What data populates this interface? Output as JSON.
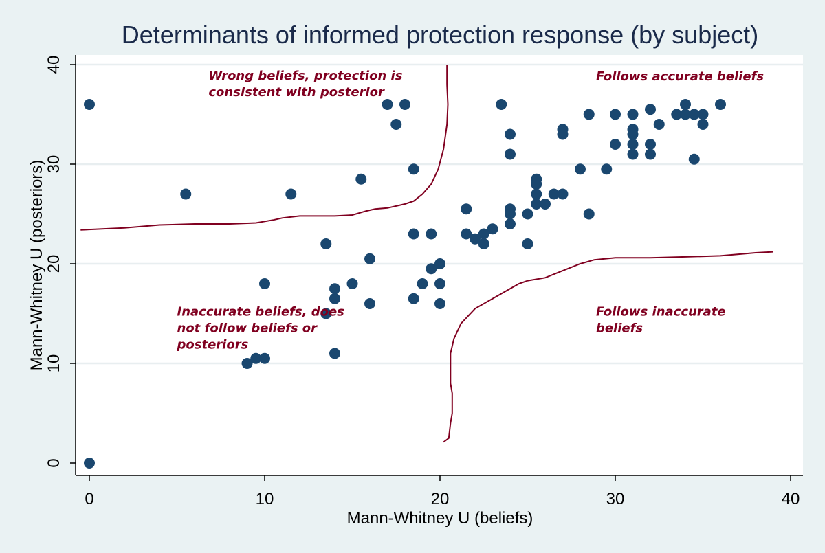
{
  "chart_data": {
    "type": "scatter",
    "title": "Determinants of informed protection response (by subject)",
    "xlabel": "Mann-Whitney U (beliefs)",
    "ylabel": "Mann-Whitney U (posteriors)",
    "xlim": [
      0,
      40
    ],
    "ylim": [
      0,
      40
    ],
    "xticks": [
      "0",
      "10",
      "20",
      "30",
      "40"
    ],
    "yticks": [
      "0",
      "10",
      "20",
      "30",
      "40"
    ],
    "grid": "horizontal",
    "colors": {
      "background": "#eaf2f3",
      "plot_background": "#ffffff",
      "marker": "#1a476f",
      "boundary_line": "#800020",
      "annotation": "#800020",
      "title": "#1a2a4a"
    },
    "points": [
      [
        0,
        36
      ],
      [
        0,
        0
      ],
      [
        5.5,
        27
      ],
      [
        11.5,
        27
      ],
      [
        13.5,
        22
      ],
      [
        13.5,
        15
      ],
      [
        14,
        17.5
      ],
      [
        14,
        16.5
      ],
      [
        14,
        11
      ],
      [
        9,
        10
      ],
      [
        9.5,
        10.5
      ],
      [
        10,
        10.5
      ],
      [
        10,
        18
      ],
      [
        15,
        18
      ],
      [
        15.5,
        28.5
      ],
      [
        16,
        20.5
      ],
      [
        16,
        16
      ],
      [
        17,
        36
      ],
      [
        17.5,
        34
      ],
      [
        18,
        36
      ],
      [
        18.5,
        29.5
      ],
      [
        18.5,
        23
      ],
      [
        18.5,
        16.5
      ],
      [
        19,
        18
      ],
      [
        19.5,
        23
      ],
      [
        19.5,
        19.5
      ],
      [
        20,
        20
      ],
      [
        20,
        18
      ],
      [
        20,
        16
      ],
      [
        21.5,
        25.5
      ],
      [
        21.5,
        23
      ],
      [
        22,
        22.5
      ],
      [
        22.5,
        23
      ],
      [
        22.5,
        22
      ],
      [
        23,
        23.5
      ],
      [
        23.5,
        36
      ],
      [
        24,
        33
      ],
      [
        24,
        31
      ],
      [
        24,
        25.5
      ],
      [
        24,
        25
      ],
      [
        24,
        24
      ],
      [
        25,
        25
      ],
      [
        25,
        22
      ],
      [
        25.5,
        28.5
      ],
      [
        25.5,
        28
      ],
      [
        25.5,
        27
      ],
      [
        25.5,
        26
      ],
      [
        26,
        26
      ],
      [
        26.5,
        27
      ],
      [
        27,
        33.5
      ],
      [
        27,
        33
      ],
      [
        27,
        27
      ],
      [
        28,
        29.5
      ],
      [
        28.5,
        35
      ],
      [
        28.5,
        25
      ],
      [
        29.5,
        29.5
      ],
      [
        30,
        35
      ],
      [
        30,
        32
      ],
      [
        31,
        35
      ],
      [
        31,
        33.5
      ],
      [
        31,
        33
      ],
      [
        31,
        32
      ],
      [
        31,
        31
      ],
      [
        32,
        35.5
      ],
      [
        32,
        32
      ],
      [
        32,
        31
      ],
      [
        32.5,
        34
      ],
      [
        33.5,
        35
      ],
      [
        34,
        36
      ],
      [
        34,
        35
      ],
      [
        34.5,
        35
      ],
      [
        34.5,
        30.5
      ],
      [
        35,
        35
      ],
      [
        35,
        34
      ],
      [
        36,
        36
      ]
    ],
    "boundary_lines": [
      {
        "name": "upper-left-boundary",
        "points": [
          [
            -0.5,
            23.4
          ],
          [
            2,
            23.6
          ],
          [
            4,
            23.9
          ],
          [
            6,
            24
          ],
          [
            8,
            24
          ],
          [
            9.5,
            24.1
          ],
          [
            10.5,
            24.4
          ],
          [
            11,
            24.6
          ],
          [
            12,
            24.8
          ],
          [
            14,
            24.8
          ],
          [
            15,
            24.9
          ],
          [
            15.8,
            25.3
          ],
          [
            16.3,
            25.5
          ],
          [
            17,
            25.6
          ],
          [
            18,
            26
          ],
          [
            18.5,
            26.3
          ],
          [
            19,
            27
          ],
          [
            19.5,
            28
          ],
          [
            19.9,
            29.5
          ],
          [
            20.2,
            31.5
          ],
          [
            20.4,
            34
          ],
          [
            20.45,
            36
          ],
          [
            20.4,
            38
          ],
          [
            20.4,
            40
          ]
        ]
      },
      {
        "name": "lower-right-boundary",
        "points": [
          [
            20.2,
            2.1
          ],
          [
            20.5,
            2.5
          ],
          [
            20.6,
            4
          ],
          [
            20.7,
            5
          ],
          [
            20.7,
            7
          ],
          [
            20.6,
            8
          ],
          [
            20.6,
            11
          ],
          [
            20.8,
            12.5
          ],
          [
            21.2,
            14
          ],
          [
            22,
            15.5
          ],
          [
            23,
            16.5
          ],
          [
            24,
            17.5
          ],
          [
            24.5,
            18
          ],
          [
            25,
            18.3
          ],
          [
            26,
            18.6
          ],
          [
            27,
            19.3
          ],
          [
            28,
            20
          ],
          [
            28.8,
            20.4
          ],
          [
            30,
            20.6
          ],
          [
            32,
            20.6
          ],
          [
            34,
            20.7
          ],
          [
            36,
            20.8
          ],
          [
            38,
            21.1
          ],
          [
            39,
            21.2
          ]
        ]
      }
    ],
    "annotations": [
      {
        "lines": [
          "Wrong beliefs, protection is",
          "consistent with posterior"
        ],
        "x": 6.8,
        "y": 38.5
      },
      {
        "lines": [
          "Follows accurate beliefs"
        ],
        "x": 28.9,
        "y": 38.4
      },
      {
        "lines": [
          "Inaccurate beliefs, does",
          "not follow beliefs or",
          "posteriors"
        ],
        "x": 5,
        "y": 14.8
      },
      {
        "lines": [
          "Follows inaccurate",
          "beliefs"
        ],
        "x": 28.9,
        "y": 14.8
      }
    ]
  }
}
